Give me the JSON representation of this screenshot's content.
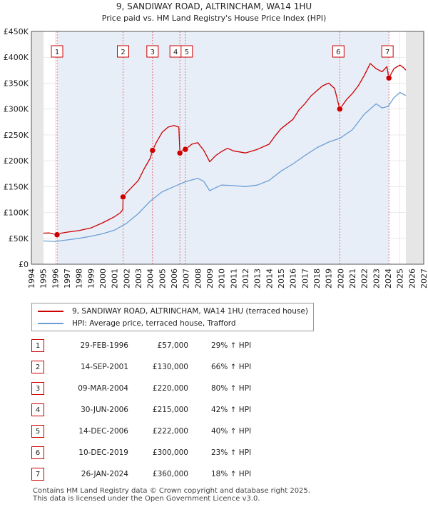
{
  "chart_data": {
    "type": "line",
    "title": "9, SANDIWAY ROAD, ALTRINCHAM, WA14 1HU",
    "subtitle": "Price paid vs. HM Land Registry's House Price Index (HPI)",
    "xlim": [
      1994,
      2027
    ],
    "ylim": [
      0,
      450000
    ],
    "ytick_values": [
      0,
      50000,
      100000,
      150000,
      200000,
      250000,
      300000,
      350000,
      400000,
      450000
    ],
    "ytick_labels": [
      "£0",
      "£50K",
      "£100K",
      "£150K",
      "£200K",
      "£250K",
      "£300K",
      "£350K",
      "£400K",
      "£450K"
    ],
    "xtick_values": [
      1994,
      1995,
      1996,
      1997,
      1998,
      1999,
      2000,
      2001,
      2002,
      2003,
      2004,
      2005,
      2006,
      2007,
      2008,
      2009,
      2010,
      2011,
      2012,
      2013,
      2014,
      2015,
      2016,
      2017,
      2018,
      2019,
      2020,
      2021,
      2022,
      2023,
      2024,
      2025,
      2026,
      2027
    ],
    "xtick_labels": [
      "1994",
      "1995",
      "1996",
      "1997",
      "1998",
      "1999",
      "2000",
      "2001",
      "2002",
      "2003",
      "2004",
      "2005",
      "2006",
      "2007",
      "2008",
      "2009",
      "2010",
      "2011",
      "2012",
      "2013",
      "2014",
      "2015",
      "2016",
      "2017",
      "2018",
      "2019",
      "2020",
      "2021",
      "2022",
      "2023",
      "2024",
      "2025",
      "2026",
      "2027"
    ],
    "data_start": 1995.0,
    "data_end": 2025.5,
    "grid": true,
    "series": [
      {
        "name": "9, SANDIWAY ROAD, ALTRINCHAM, WA14 1HU (terraced house)",
        "color": "#cc0000",
        "points": [
          [
            1995.0,
            60000
          ],
          [
            1995.5,
            60500
          ],
          [
            1996.16,
            57000
          ],
          [
            1996.5,
            60000
          ],
          [
            1997.0,
            62000
          ],
          [
            1998.0,
            65000
          ],
          [
            1999.0,
            70000
          ],
          [
            2000.0,
            80000
          ],
          [
            2001.0,
            92000
          ],
          [
            2001.5,
            100000
          ],
          [
            2001.7,
            106000
          ],
          [
            2001.71,
            130000
          ],
          [
            2002.0,
            138000
          ],
          [
            2002.5,
            150000
          ],
          [
            2003.0,
            162000
          ],
          [
            2003.5,
            185000
          ],
          [
            2004.0,
            205000
          ],
          [
            2004.19,
            220000
          ],
          [
            2004.5,
            235000
          ],
          [
            2005.0,
            255000
          ],
          [
            2005.5,
            265000
          ],
          [
            2006.0,
            268000
          ],
          [
            2006.4,
            265000
          ],
          [
            2006.49,
            215000
          ],
          [
            2006.7,
            220000
          ],
          [
            2006.95,
            222000
          ],
          [
            2007.5,
            232000
          ],
          [
            2008.0,
            235000
          ],
          [
            2008.5,
            220000
          ],
          [
            2009.0,
            198000
          ],
          [
            2009.5,
            210000
          ],
          [
            2010.0,
            218000
          ],
          [
            2010.5,
            224000
          ],
          [
            2011.0,
            219000
          ],
          [
            2012.0,
            215000
          ],
          [
            2013.0,
            222000
          ],
          [
            2014.0,
            232000
          ],
          [
            2014.5,
            248000
          ],
          [
            2015.0,
            262000
          ],
          [
            2016.0,
            280000
          ],
          [
            2016.5,
            298000
          ],
          [
            2017.0,
            310000
          ],
          [
            2017.5,
            325000
          ],
          [
            2018.0,
            335000
          ],
          [
            2018.5,
            345000
          ],
          [
            2019.0,
            350000
          ],
          [
            2019.5,
            340000
          ],
          [
            2019.94,
            300000
          ],
          [
            2020.5,
            318000
          ],
          [
            2021.0,
            330000
          ],
          [
            2021.5,
            345000
          ],
          [
            2022.0,
            365000
          ],
          [
            2022.5,
            388000
          ],
          [
            2023.0,
            378000
          ],
          [
            2023.5,
            372000
          ],
          [
            2023.9,
            382000
          ],
          [
            2024.07,
            360000
          ],
          [
            2024.5,
            378000
          ],
          [
            2025.0,
            385000
          ],
          [
            2025.3,
            380000
          ],
          [
            2025.5,
            375000
          ]
        ]
      },
      {
        "name": "HPI: Average price, terraced house, Trafford",
        "color": "#6b9fd4",
        "points": [
          [
            1995.0,
            45000
          ],
          [
            1996.0,
            44000
          ],
          [
            1997.0,
            47000
          ],
          [
            1998.0,
            50000
          ],
          [
            1999.0,
            54000
          ],
          [
            2000.0,
            59000
          ],
          [
            2001.0,
            66000
          ],
          [
            2002.0,
            79000
          ],
          [
            2003.0,
            98000
          ],
          [
            2004.0,
            122000
          ],
          [
            2005.0,
            140000
          ],
          [
            2006.0,
            150000
          ],
          [
            2007.0,
            160000
          ],
          [
            2008.0,
            166000
          ],
          [
            2008.5,
            160000
          ],
          [
            2009.0,
            142000
          ],
          [
            2009.5,
            148000
          ],
          [
            2010.0,
            153000
          ],
          [
            2011.0,
            152000
          ],
          [
            2012.0,
            150000
          ],
          [
            2013.0,
            153000
          ],
          [
            2014.0,
            162000
          ],
          [
            2015.0,
            180000
          ],
          [
            2016.0,
            194000
          ],
          [
            2017.0,
            210000
          ],
          [
            2018.0,
            225000
          ],
          [
            2019.0,
            236000
          ],
          [
            2020.0,
            244000
          ],
          [
            2021.0,
            260000
          ],
          [
            2022.0,
            290000
          ],
          [
            2023.0,
            310000
          ],
          [
            2023.5,
            302000
          ],
          [
            2024.0,
            305000
          ],
          [
            2024.5,
            322000
          ],
          [
            2025.0,
            332000
          ],
          [
            2025.5,
            326000
          ]
        ]
      }
    ],
    "transactions": [
      {
        "label": "1",
        "x": 1996.16,
        "price": 57000,
        "date": "29-FEB-1996",
        "price_label": "£57,000",
        "hpi": "29% ↑ HPI"
      },
      {
        "label": "2",
        "x": 2001.71,
        "price": 130000,
        "date": "14-SEP-2001",
        "price_label": "£130,000",
        "hpi": "66% ↑ HPI"
      },
      {
        "label": "3",
        "x": 2004.19,
        "price": 220000,
        "date": "09-MAR-2004",
        "price_label": "£220,000",
        "hpi": "80% ↑ HPI"
      },
      {
        "label": "4",
        "x": 2006.49,
        "price": 215000,
        "date": "30-JUN-2006",
        "price_label": "£215,000",
        "hpi": "42% ↑ HPI"
      },
      {
        "label": "5",
        "x": 2006.95,
        "price": 222000,
        "date": "14-DEC-2006",
        "price_label": "£222,000",
        "hpi": "40% ↑ HPI"
      },
      {
        "label": "6",
        "x": 2019.94,
        "price": 300000,
        "date": "10-DEC-2019",
        "price_label": "£300,000",
        "hpi": "23% ↑ HPI"
      },
      {
        "label": "7",
        "x": 2024.07,
        "price": 360000,
        "date": "26-JAN-2024",
        "price_label": "£360,000",
        "hpi": "18% ↑ HPI"
      }
    ]
  },
  "legend": {
    "red_label": "9, SANDIWAY ROAD, ALTRINCHAM, WA14 1HU (terraced house)",
    "blue_label": "HPI: Average price, terraced house, Trafford"
  },
  "footer": {
    "line1": "Contains HM Land Registry data © Crown copyright and database right 2025.",
    "line2": "This data is licensed under the Open Government Licence v3.0."
  }
}
